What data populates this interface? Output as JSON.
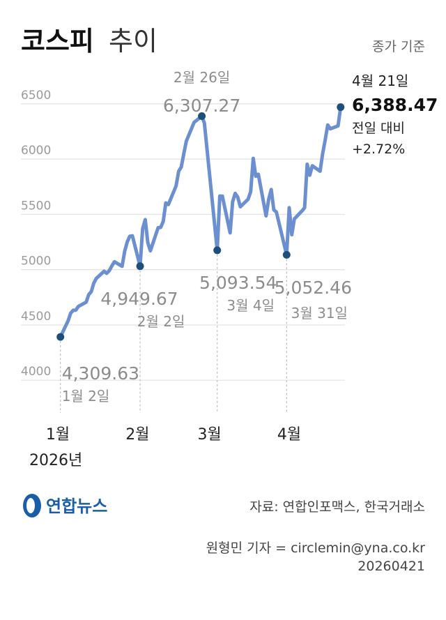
{
  "header": {
    "title_bold": "코스피",
    "title_light": "추이",
    "basis": "종가 기준"
  },
  "chart_data": {
    "type": "line",
    "ylim": [
      3850,
      6550
    ],
    "yticks": [
      "6500",
      "6000",
      "5500",
      "5000",
      "4500",
      "4000"
    ],
    "ytick_values": [
      6500,
      6000,
      5500,
      5000,
      4500,
      4000
    ],
    "xticks": [
      {
        "label": "1월",
        "date": "2026-01-01"
      },
      {
        "label": "2월",
        "date": "2026-02-01"
      },
      {
        "label": "3월",
        "date": "2026-03-01"
      },
      {
        "label": "4월",
        "date": "2026-04-01"
      }
    ],
    "year_label": "2026년",
    "series": [
      {
        "points": [
          [
            "2026-01-02",
            4309.63
          ],
          [
            "2026-01-05",
            4457
          ],
          [
            "2026-01-06",
            4525
          ],
          [
            "2026-01-07",
            4551
          ],
          [
            "2026-01-08",
            4552
          ],
          [
            "2026-01-09",
            4586
          ],
          [
            "2026-01-12",
            4624
          ],
          [
            "2026-01-13",
            4692
          ],
          [
            "2026-01-14",
            4720
          ],
          [
            "2026-01-15",
            4797
          ],
          [
            "2026-01-16",
            4840
          ],
          [
            "2026-01-19",
            4904
          ],
          [
            "2026-01-20",
            4885
          ],
          [
            "2026-01-21",
            4909
          ],
          [
            "2026-01-22",
            4952
          ],
          [
            "2026-01-23",
            4990
          ],
          [
            "2026-01-26",
            4949
          ],
          [
            "2026-01-27",
            5084
          ],
          [
            "2026-01-28",
            5170
          ],
          [
            "2026-01-29",
            5221
          ],
          [
            "2026-01-30",
            5224
          ],
          [
            "2026-02-02",
            4949.67
          ],
          [
            "2026-02-03",
            5288
          ],
          [
            "2026-02-04",
            5371
          ],
          [
            "2026-02-05",
            5163
          ],
          [
            "2026-02-06",
            5089
          ],
          [
            "2026-02-09",
            5298
          ],
          [
            "2026-02-10",
            5301
          ],
          [
            "2026-02-11",
            5354
          ],
          [
            "2026-02-12",
            5522
          ],
          [
            "2026-02-13",
            5507
          ],
          [
            "2026-02-16",
            5677
          ],
          [
            "2026-02-17",
            5808
          ],
          [
            "2026-02-18",
            5846
          ],
          [
            "2026-02-19",
            5969
          ],
          [
            "2026-02-20",
            6081
          ],
          [
            "2026-02-23",
            6251
          ],
          [
            "2026-02-26",
            6307.27
          ],
          [
            "2026-02-27",
            6244
          ],
          [
            "2026-03-04",
            5093.54
          ],
          [
            "2026-03-05",
            5584
          ],
          [
            "2026-03-06",
            5583
          ],
          [
            "2026-03-09",
            5251
          ],
          [
            "2026-03-10",
            5532
          ],
          [
            "2026-03-11",
            5609
          ],
          [
            "2026-03-12",
            5573
          ],
          [
            "2026-03-13",
            5487
          ],
          [
            "2026-03-16",
            5555
          ],
          [
            "2026-03-17",
            5624
          ],
          [
            "2026-03-18",
            5925
          ],
          [
            "2026-03-19",
            5763
          ],
          [
            "2026-03-20",
            5781
          ],
          [
            "2026-03-23",
            5405
          ],
          [
            "2026-03-24",
            5553
          ],
          [
            "2026-03-25",
            5643
          ],
          [
            "2026-03-26",
            5460
          ],
          [
            "2026-03-27",
            5439
          ],
          [
            "2026-03-31",
            5052.46
          ],
          [
            "2026-04-01",
            5478
          ],
          [
            "2026-04-02",
            5234
          ],
          [
            "2026-04-03",
            5377
          ],
          [
            "2026-04-06",
            5450
          ],
          [
            "2026-04-07",
            5479
          ],
          [
            "2026-04-08",
            5872
          ],
          [
            "2026-04-09",
            5773
          ],
          [
            "2026-04-10",
            5858
          ],
          [
            "2026-04-13",
            5809
          ],
          [
            "2026-04-14",
            5968
          ],
          [
            "2026-04-15",
            6091
          ],
          [
            "2026-04-16",
            6227
          ],
          [
            "2026-04-17",
            6192
          ],
          [
            "2026-04-20",
            6219
          ],
          [
            "2026-04-21",
            6388.47
          ]
        ]
      }
    ],
    "annotations": [
      {
        "date": "2026-01-02",
        "value_label": "4,309.63",
        "date_label": "1월 2일",
        "y": 4309.63
      },
      {
        "date": "2026-02-02",
        "value_label": "4,949.67",
        "date_label": "2월 2일",
        "y": 4949.67
      },
      {
        "date": "2026-02-26",
        "value_label": "6,307.27",
        "date_label": "2월 26일",
        "y": 6307.27
      },
      {
        "date": "2026-03-04",
        "value_label": "5,093.54",
        "date_label": "3월 4일",
        "y": 5093.54
      },
      {
        "date": "2026-03-31",
        "value_label": "5,052.46",
        "date_label": "3월 31일",
        "y": 5052.46
      },
      {
        "date": "2026-04-21",
        "value_label": "6,388.47",
        "date_label": "4월 21일",
        "y": 6388.47,
        "change_label": "전일 대비",
        "change_value": "+2.72%"
      }
    ],
    "colors": {
      "line": "#6b8fcf",
      "dot": "#1e4f7a"
    }
  },
  "footer": {
    "logo_text": "연합뉴스",
    "source": "자료: 연합인포맥스, 한국거래소",
    "reporter": "원형민 기자 = circlemin@yna.co.kr",
    "date_code": "20260421"
  }
}
